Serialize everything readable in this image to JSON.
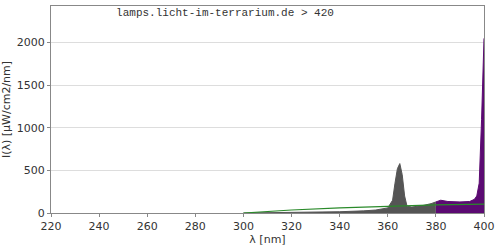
{
  "chart_data": {
    "type": "area",
    "title": "lamps.licht-im-terrarium.de > 420",
    "x_label": "λ [nm]",
    "y_label": "I(λ) [μW/cm2/nm]",
    "series": [
      {
        "type": "area",
        "color": "#555555",
        "x": [
          300,
          320,
          340,
          350,
          355,
          360,
          362,
          363,
          364,
          365,
          366,
          367,
          368,
          370,
          372,
          375,
          378,
          380
        ],
        "values": [
          0,
          5,
          15,
          25,
          35,
          60,
          150,
          350,
          520,
          580,
          450,
          200,
          80,
          70,
          75,
          90,
          110,
          130
        ]
      },
      {
        "type": "area",
        "color": "#5b0a72",
        "x": [
          380,
          382,
          385,
          390,
          394,
          396,
          397,
          398,
          399,
          399.5,
          400
        ],
        "values": [
          130,
          150,
          135,
          130,
          135,
          160,
          200,
          350,
          1100,
          1600,
          2050
        ]
      },
      {
        "type": "line",
        "color": "#2a8a2a",
        "x": [
          300,
          310,
          320,
          340,
          360,
          380,
          400
        ],
        "values": [
          0,
          20,
          35,
          60,
          80,
          95,
          105
        ]
      }
    ],
    "xlim": [
      220,
      400
    ],
    "xticks": [
      220,
      240,
      260,
      280,
      300,
      320,
      340,
      360,
      380,
      400
    ],
    "ylim": [
      0,
      2430
    ],
    "yticks": [
      0,
      500,
      1000,
      1500,
      2000
    ],
    "grid": true
  }
}
